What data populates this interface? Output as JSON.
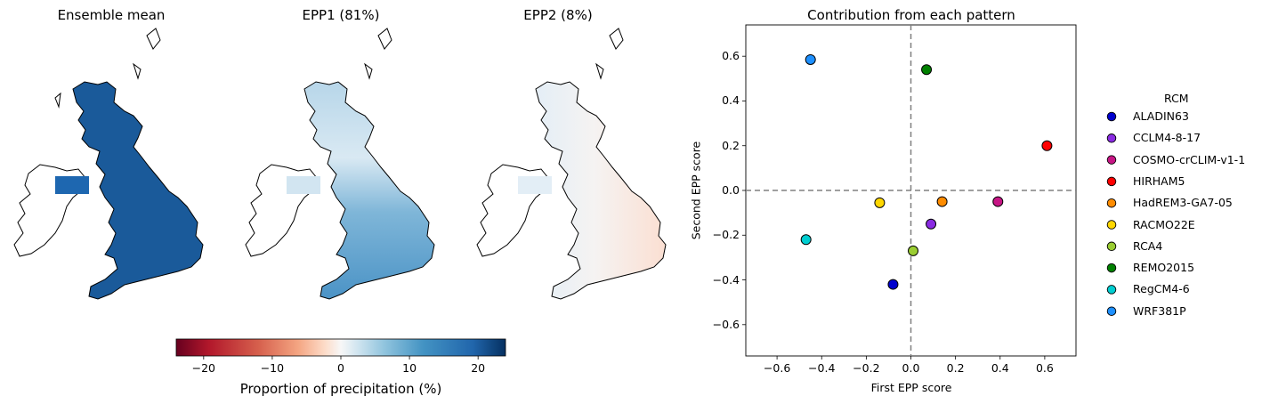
{
  "maps": {
    "panels": [
      {
        "title": "Ensemble mean",
        "tone": "mean"
      },
      {
        "title": "EPP1 (81%)",
        "tone": "epp1"
      },
      {
        "title": "EPP2 (8%)",
        "tone": "epp2"
      }
    ],
    "colorbar": {
      "label": "Proportion of precipitation (%)",
      "range": [
        -24,
        24
      ],
      "ticks": [
        -20,
        -10,
        0,
        10,
        20
      ],
      "tick_labels": [
        "−20",
        "−10",
        "0",
        "10",
        "20"
      ],
      "colormap": "RdBu"
    }
  },
  "chart_data": {
    "type": "scatter",
    "title": "Contribution from each pattern",
    "xlabel": "First EPP score",
    "ylabel": "Second EPP score",
    "xlim": [
      -0.74,
      0.74
    ],
    "ylim": [
      -0.74,
      0.74
    ],
    "xticks": [
      -0.6,
      -0.4,
      -0.2,
      0.0,
      0.2,
      0.4,
      0.6
    ],
    "xtick_labels": [
      "−0.6",
      "−0.4",
      "−0.2",
      "0.0",
      "0.2",
      "0.4",
      "0.6"
    ],
    "yticks": [
      -0.6,
      -0.4,
      -0.2,
      0.0,
      0.2,
      0.4,
      0.6
    ],
    "ytick_labels": [
      "−0.6",
      "−0.4",
      "−0.2",
      "0.0",
      "0.2",
      "0.4",
      "0.6"
    ],
    "reference_lines": {
      "x": 0,
      "y": 0,
      "style": "dashed",
      "color": "#808080"
    },
    "legend_title": "RCM",
    "legend_position": "right",
    "series": [
      {
        "name": "ALADIN63",
        "color": "#0000cd",
        "x": -0.08,
        "y": -0.42
      },
      {
        "name": "CCLM4-8-17",
        "color": "#8a2be2",
        "x": 0.09,
        "y": -0.15
      },
      {
        "name": "COSMO-crCLIM-v1-1",
        "color": "#c71585",
        "x": 0.39,
        "y": -0.05
      },
      {
        "name": "HIRHAM5",
        "color": "#ff0000",
        "x": 0.61,
        "y": 0.2
      },
      {
        "name": "HadREM3-GA7-05",
        "color": "#ff8c00",
        "x": 0.14,
        "y": -0.05
      },
      {
        "name": "RACMO22E",
        "color": "#ffd700",
        "x": -0.14,
        "y": -0.055
      },
      {
        "name": "RCA4",
        "color": "#9acd32",
        "x": 0.01,
        "y": -0.27
      },
      {
        "name": "REMO2015",
        "color": "#008000",
        "x": 0.07,
        "y": 0.54
      },
      {
        "name": "RegCM4-6",
        "color": "#00ced1",
        "x": -0.47,
        "y": -0.22
      },
      {
        "name": "WRF381P",
        "color": "#1e90ff",
        "x": -0.45,
        "y": 0.585
      }
    ]
  }
}
